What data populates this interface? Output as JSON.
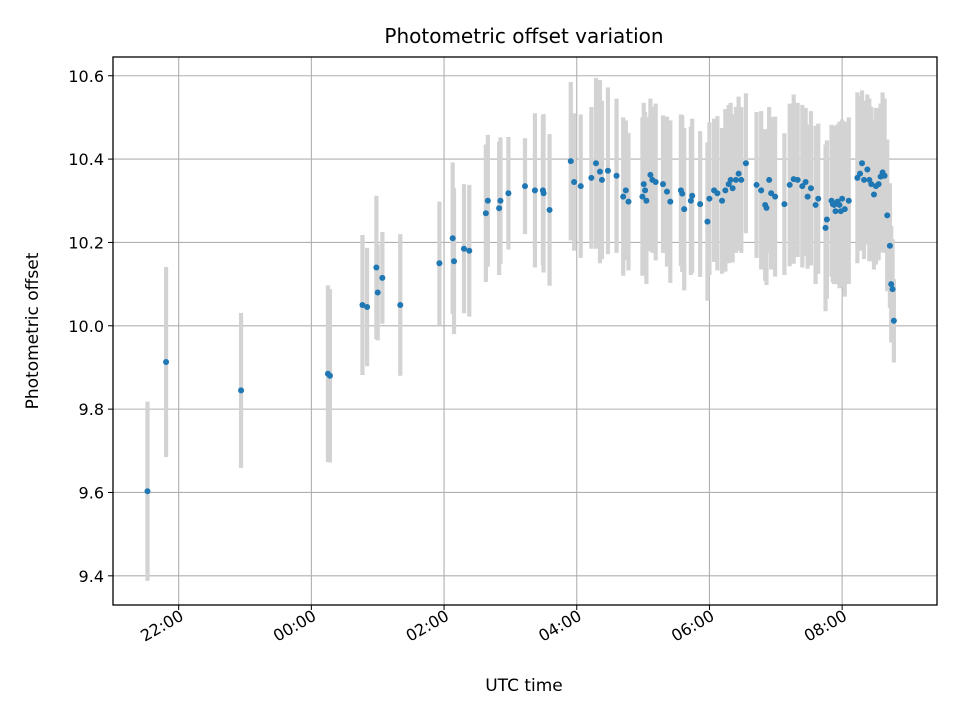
{
  "chart_data": {
    "type": "scatter",
    "title": "Photometric offset variation",
    "xlabel": "UTC time",
    "ylabel": "Photometric offset",
    "x_unit": "hours",
    "xlim": [
      -2.99,
      9.43
    ],
    "ylim": [
      9.33,
      10.645
    ],
    "grid": true,
    "x_ticks": [
      {
        "value": -2,
        "label": "22:00"
      },
      {
        "value": 0,
        "label": "00:00"
      },
      {
        "value": 2,
        "label": "02:00"
      },
      {
        "value": 4,
        "label": "04:00"
      },
      {
        "value": 6,
        "label": "06:00"
      },
      {
        "value": 8,
        "label": "08:00"
      }
    ],
    "y_ticks": [
      {
        "value": 9.4,
        "label": "9.4"
      },
      {
        "value": 9.6,
        "label": "9.6"
      },
      {
        "value": 9.8,
        "label": "9.8"
      },
      {
        "value": 10.0,
        "label": "10.0"
      },
      {
        "value": 10.2,
        "label": "10.2"
      },
      {
        "value": 10.4,
        "label": "10.4"
      },
      {
        "value": 10.6,
        "label": "10.6"
      }
    ],
    "colors": {
      "marker": "#1f77b4",
      "errorbar": "#d3d3d3",
      "grid": "#b0b0b0"
    },
    "points": [
      [
        -2.47,
        9.603,
        0.215
      ],
      [
        -2.19,
        9.913,
        0.228
      ],
      [
        -1.06,
        9.845,
        0.186
      ],
      [
        0.25,
        9.885,
        0.212
      ],
      [
        0.28,
        9.88,
        0.208
      ],
      [
        0.77,
        10.05,
        0.168
      ],
      [
        0.84,
        10.045,
        0.142
      ],
      [
        0.98,
        10.14,
        0.172
      ],
      [
        1.0,
        10.08,
        0.115
      ],
      [
        1.07,
        10.115,
        0.11
      ],
      [
        1.34,
        10.05,
        0.17
      ],
      [
        1.93,
        10.15,
        0.148
      ],
      [
        2.13,
        10.21,
        0.182
      ],
      [
        2.15,
        10.155,
        0.175
      ],
      [
        2.3,
        10.185,
        0.155
      ],
      [
        2.38,
        10.18,
        0.158
      ],
      [
        2.63,
        10.27,
        0.165
      ],
      [
        2.66,
        10.3,
        0.158
      ],
      [
        2.83,
        10.282,
        0.16
      ],
      [
        2.85,
        10.3,
        0.152
      ],
      [
        2.97,
        10.318,
        0.135
      ],
      [
        3.22,
        10.335,
        0.115
      ],
      [
        3.37,
        10.325,
        0.185
      ],
      [
        3.49,
        10.325,
        0.18
      ],
      [
        3.5,
        10.318,
        0.19
      ],
      [
        3.59,
        10.278,
        0.182
      ],
      [
        3.91,
        10.395,
        0.19
      ],
      [
        3.96,
        10.345,
        0.165
      ],
      [
        4.06,
        10.335,
        0.172
      ],
      [
        4.22,
        10.355,
        0.17
      ],
      [
        4.29,
        10.39,
        0.205
      ],
      [
        4.35,
        10.37,
        0.22
      ],
      [
        4.38,
        10.35,
        0.19
      ],
      [
        4.47,
        10.372,
        0.2
      ],
      [
        4.6,
        10.36,
        0.185
      ],
      [
        4.7,
        10.31,
        0.19
      ],
      [
        4.74,
        10.325,
        0.168
      ],
      [
        4.78,
        10.298,
        0.165
      ],
      [
        4.99,
        10.31,
        0.19
      ],
      [
        5.01,
        10.34,
        0.195
      ],
      [
        5.03,
        10.325,
        0.188
      ],
      [
        5.05,
        10.3,
        0.2
      ],
      [
        5.11,
        10.362,
        0.183
      ],
      [
        5.14,
        10.35,
        0.175
      ],
      [
        5.19,
        10.345,
        0.188
      ],
      [
        5.3,
        10.34,
        0.165
      ],
      [
        5.36,
        10.322,
        0.18
      ],
      [
        5.41,
        10.298,
        0.195
      ],
      [
        5.57,
        10.325,
        0.182
      ],
      [
        5.59,
        10.317,
        0.188
      ],
      [
        5.62,
        10.28,
        0.195
      ],
      [
        5.72,
        10.3,
        0.178
      ],
      [
        5.74,
        10.312,
        0.185
      ],
      [
        5.86,
        10.292,
        0.175
      ],
      [
        5.97,
        10.25,
        0.19
      ],
      [
        6.0,
        10.305,
        0.183
      ],
      [
        6.07,
        10.325,
        0.172
      ],
      [
        6.12,
        10.318,
        0.185
      ],
      [
        6.19,
        10.3,
        0.175
      ],
      [
        6.24,
        10.325,
        0.195
      ],
      [
        6.29,
        10.34,
        0.19
      ],
      [
        6.32,
        10.35,
        0.185
      ],
      [
        6.35,
        10.33,
        0.178
      ],
      [
        6.4,
        10.35,
        0.175
      ],
      [
        6.44,
        10.365,
        0.185
      ],
      [
        6.48,
        10.35,
        0.175
      ],
      [
        6.55,
        10.39,
        0.168
      ],
      [
        6.71,
        10.338,
        0.175
      ],
      [
        6.78,
        10.325,
        0.19
      ],
      [
        6.84,
        10.29,
        0.182
      ],
      [
        6.86,
        10.283,
        0.185
      ],
      [
        6.9,
        10.35,
        0.175
      ],
      [
        6.93,
        10.318,
        0.183
      ],
      [
        6.99,
        10.31,
        0.192
      ],
      [
        7.13,
        10.292,
        0.17
      ],
      [
        7.21,
        10.338,
        0.195
      ],
      [
        7.27,
        10.352,
        0.203
      ],
      [
        7.33,
        10.35,
        0.185
      ],
      [
        7.4,
        10.335,
        0.195
      ],
      [
        7.45,
        10.345,
        0.178
      ],
      [
        7.48,
        10.31,
        0.173
      ],
      [
        7.53,
        10.33,
        0.185
      ],
      [
        7.6,
        10.29,
        0.19
      ],
      [
        7.64,
        10.305,
        0.18
      ],
      [
        7.75,
        10.235,
        0.2
      ],
      [
        7.77,
        10.255,
        0.19
      ],
      [
        7.84,
        10.3,
        0.182
      ],
      [
        7.86,
        10.292,
        0.188
      ],
      [
        7.88,
        10.29,
        0.19
      ],
      [
        7.9,
        10.275,
        0.175
      ],
      [
        7.93,
        10.298,
        0.185
      ],
      [
        7.96,
        10.29,
        0.2
      ],
      [
        7.98,
        10.275,
        0.182
      ],
      [
        8.0,
        10.305,
        0.19
      ],
      [
        8.04,
        10.28,
        0.21
      ],
      [
        8.1,
        10.3,
        0.2
      ],
      [
        8.23,
        10.355,
        0.205
      ],
      [
        8.27,
        10.365,
        0.185
      ],
      [
        8.3,
        10.39,
        0.175
      ],
      [
        8.33,
        10.35,
        0.19
      ],
      [
        8.38,
        10.375,
        0.18
      ],
      [
        8.41,
        10.35,
        0.195
      ],
      [
        8.44,
        10.34,
        0.185
      ],
      [
        8.48,
        10.315,
        0.18
      ],
      [
        8.51,
        10.335,
        0.188
      ],
      [
        8.55,
        10.34,
        0.183
      ],
      [
        8.58,
        10.358,
        0.175
      ],
      [
        8.61,
        10.368,
        0.192
      ],
      [
        8.64,
        10.36,
        0.185
      ],
      [
        8.68,
        10.265,
        0.182
      ],
      [
        8.72,
        10.192,
        0.15
      ],
      [
        8.74,
        10.1,
        0.14
      ],
      [
        8.76,
        10.088,
        0.12
      ],
      [
        8.78,
        10.012,
        0.1
      ]
    ]
  }
}
